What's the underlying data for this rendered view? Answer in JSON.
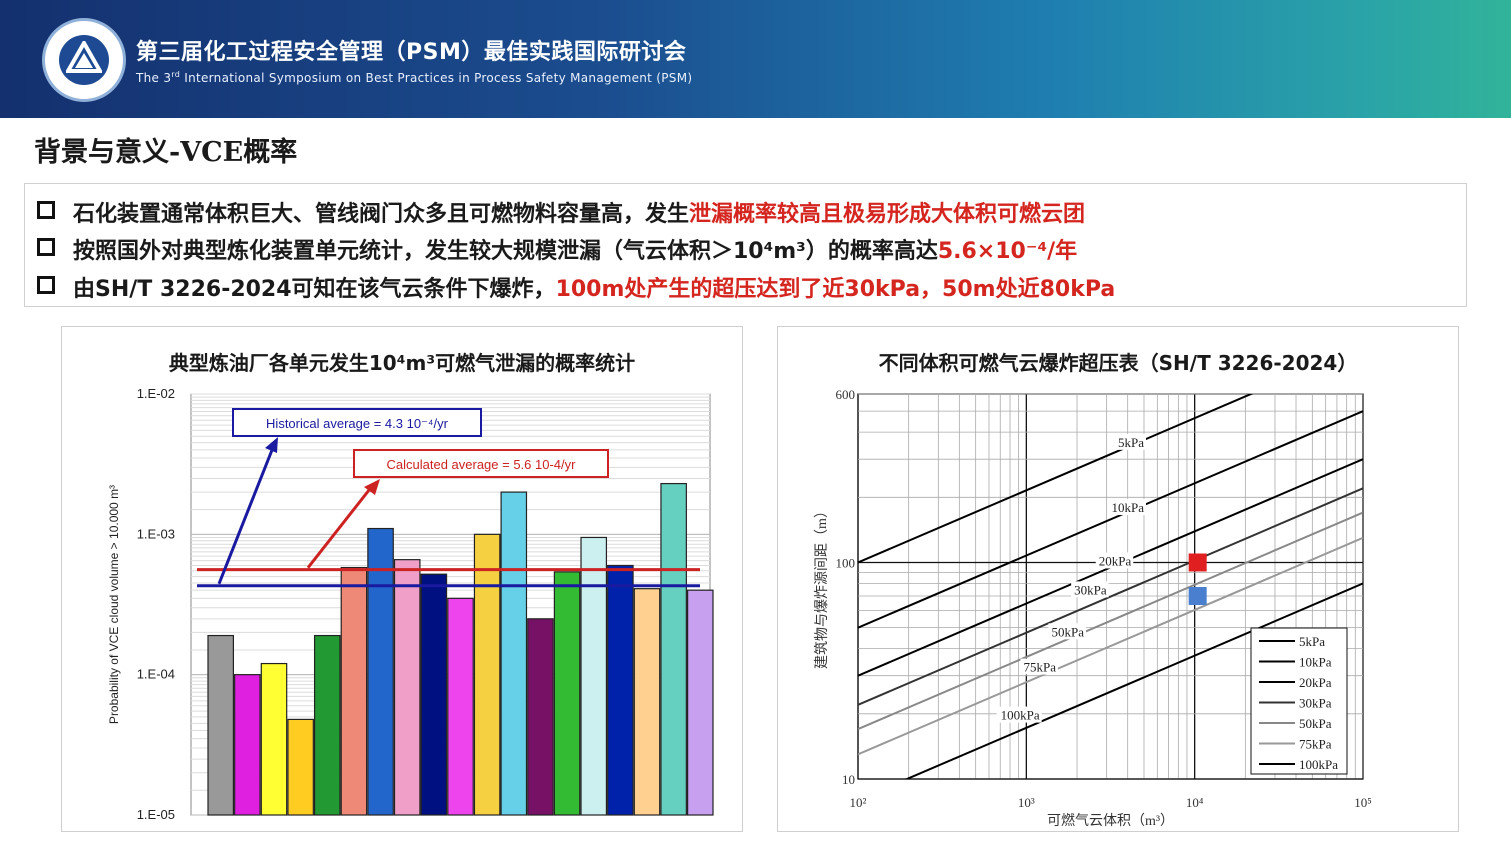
{
  "header": {
    "title_cn": "第三届化工过程安全管理（PSM）最佳实践国际研讨会",
    "title_en_pre": "The 3",
    "title_en_sup": "rd",
    "title_en_post": " International Symposium on Best Practices in Process Safety Management (PSM)",
    "logo_icon": "psm-logo-icon"
  },
  "slide": {
    "title": "背景与意义-VCE概率",
    "bullets": [
      {
        "text": "石化装置通常体积巨大、管线阀门众多且可燃物料容量高，发生",
        "highlight": "泄漏概率较高且极易形成大体积可燃云团"
      },
      {
        "text": "按照国外对典型炼化装置单元统计，发生较大规模泄漏（气云体积＞10⁴m³）的概率高达",
        "highlight": "5.6×10⁻⁴/年"
      },
      {
        "text": "由SH/T 3226-2024可知在该气云条件下爆炸，",
        "highlight": "100m处产生的超压达到了近30kPa，50m处近80kPa"
      }
    ],
    "accent_color": "#d4251f"
  },
  "chart_data": [
    {
      "type": "bar",
      "title": "典型炼油厂各单元发生10⁴m³可燃气泄漏的概率统计",
      "ylabel": "Probability of VCE cloud volume > 10.000 m³",
      "xlabel": "",
      "yscale": "log",
      "ylim": [
        1e-05,
        0.01
      ],
      "yticks": [
        "1.E-05",
        "1.E-04",
        "1.E-03",
        "1.E-02"
      ],
      "grid": true,
      "values": [
        0.00019,
        0.0001,
        0.00012,
        4.8e-05,
        0.00019,
        0.00058,
        0.0011,
        0.00066,
        0.00052,
        0.00035,
        0.001,
        0.002,
        0.00025,
        0.00054,
        0.00095,
        0.0006,
        0.00041,
        0.0023,
        0.0004
      ],
      "colors": [
        "#999999",
        "#e020e0",
        "#ffff33",
        "#ffcc22",
        "#229933",
        "#ee8877",
        "#2266cc",
        "#f0a0c8",
        "#001080",
        "#ee44ee",
        "#f5d040",
        "#66d0e8",
        "#771166",
        "#33bb33",
        "#ccf0f0",
        "#0022aa",
        "#ffd090",
        "#66d0c0",
        "#c8a0f0"
      ],
      "reference_lines": [
        {
          "label": "Historical average = 4.3 10⁻⁴/yr",
          "value": 0.00043,
          "color": "#1a1aa0"
        },
        {
          "label": "Calculated average = 5.6 10-4/yr",
          "value": 0.00056,
          "color": "#cc2222"
        }
      ]
    },
    {
      "type": "line",
      "title": "不同体积可燃气云爆炸超压表（SH/T 3226-2024）",
      "xlabel": "可燃气云体积（m³）",
      "ylabel": "建筑物与爆炸源间距（m）",
      "xscale": "log",
      "yscale": "log",
      "xlim": [
        100,
        100000
      ],
      "ylim": [
        10,
        600
      ],
      "xticks": [
        "10²",
        "10³",
        "10⁴",
        "10⁵"
      ],
      "yticks": [
        "10",
        "100",
        "600"
      ],
      "grid": true,
      "legend": "bottom-right",
      "series": [
        {
          "name": "5kPa",
          "x": [
            100,
            100000
          ],
          "y": [
            100,
            1000
          ],
          "color": "#000000"
        },
        {
          "name": "10kPa",
          "x": [
            100,
            100000
          ],
          "y": [
            50,
            500
          ],
          "color": "#000000"
        },
        {
          "name": "20kPa",
          "x": [
            100,
            100000
          ],
          "y": [
            30,
            300
          ],
          "color": "#000000"
        },
        {
          "name": "30kPa",
          "x": [
            100,
            100000
          ],
          "y": [
            22,
            220
          ],
          "color": "#333333"
        },
        {
          "name": "50kPa",
          "x": [
            100,
            100000
          ],
          "y": [
            17,
            170
          ],
          "color": "#888888"
        },
        {
          "name": "75kPa",
          "x": [
            100,
            100000
          ],
          "y": [
            13,
            130
          ],
          "color": "#999999"
        },
        {
          "name": "100kPa",
          "x": [
            100,
            100000
          ],
          "y": [
            8,
            80
          ],
          "color": "#000000"
        }
      ],
      "markers": [
        {
          "x": 10000,
          "y": 100,
          "color": "#e02020"
        },
        {
          "x": 10000,
          "y": 70,
          "color": "#4a7fd0"
        }
      ]
    }
  ]
}
